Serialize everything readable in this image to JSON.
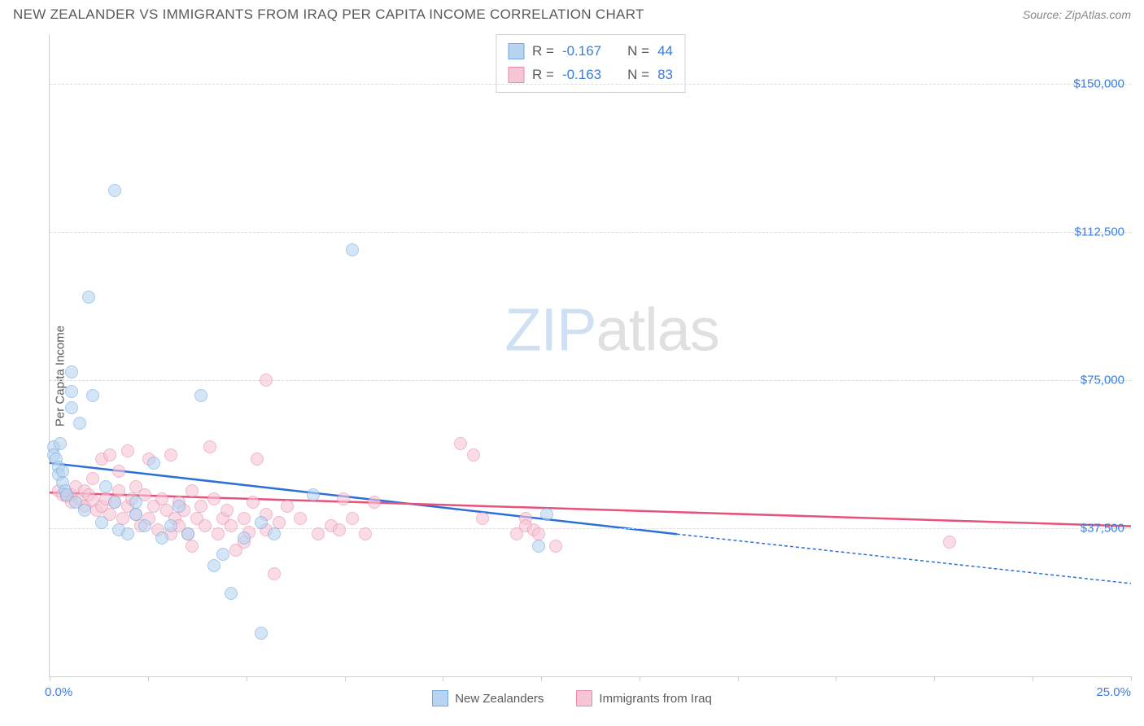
{
  "header": {
    "title": "NEW ZEALANDER VS IMMIGRANTS FROM IRAQ PER CAPITA INCOME CORRELATION CHART",
    "source": "Source: ZipAtlas.com"
  },
  "ylabel": "Per Capita Income",
  "watermark": {
    "part1": "ZIP",
    "part2": "atlas"
  },
  "chart": {
    "type": "scatter",
    "xlim": [
      0,
      25
    ],
    "ylim": [
      0,
      162500
    ],
    "background_color": "#ffffff",
    "grid_color": "#dcdcdc",
    "axis_color": "#cfcfcf",
    "ygrid": [
      {
        "y": 37500,
        "label": "$37,500"
      },
      {
        "y": 75000,
        "label": "$75,000"
      },
      {
        "y": 112500,
        "label": "$112,500"
      },
      {
        "y": 150000,
        "label": "$150,000"
      }
    ],
    "xticks": [
      0,
      2.27,
      4.55,
      6.82,
      9.09,
      11.36,
      13.64,
      15.91,
      18.18,
      20.45,
      22.73,
      25
    ],
    "xlabels": {
      "first": "0.0%",
      "last": "25.0%"
    },
    "marker_size": 16,
    "series": [
      {
        "name": "New Zealanders",
        "fill_color": "#b8d4f0",
        "stroke_color": "#6fa8e0",
        "fill_opacity": 0.6,
        "R": "-0.167",
        "N": "44",
        "trend": {
          "solid": {
            "x1": 0,
            "y1": 54000,
            "x2": 14.5,
            "y2": 36000
          },
          "dashed": {
            "x1": 14.5,
            "y1": 36000,
            "x2": 25,
            "y2": 23500
          },
          "color": "#2d6fd8",
          "width": 2.5
        },
        "points": [
          [
            0.1,
            58000
          ],
          [
            0.1,
            56000
          ],
          [
            0.15,
            55000
          ],
          [
            0.2,
            53000
          ],
          [
            0.2,
            51000
          ],
          [
            0.25,
            59000
          ],
          [
            0.3,
            49000
          ],
          [
            0.3,
            52000
          ],
          [
            0.35,
            47000
          ],
          [
            0.4,
            46000
          ],
          [
            0.5,
            77000
          ],
          [
            0.5,
            68000
          ],
          [
            0.5,
            72000
          ],
          [
            0.6,
            44000
          ],
          [
            0.7,
            64000
          ],
          [
            0.8,
            42000
          ],
          [
            0.9,
            96000
          ],
          [
            1.0,
            71000
          ],
          [
            1.2,
            39000
          ],
          [
            1.3,
            48000
          ],
          [
            1.5,
            44000
          ],
          [
            1.5,
            123000
          ],
          [
            1.6,
            37000
          ],
          [
            1.8,
            36000
          ],
          [
            2.0,
            44000
          ],
          [
            2.0,
            41000
          ],
          [
            2.2,
            38000
          ],
          [
            2.4,
            54000
          ],
          [
            2.6,
            35000
          ],
          [
            2.8,
            38000
          ],
          [
            3.0,
            43000
          ],
          [
            3.2,
            36000
          ],
          [
            3.5,
            71000
          ],
          [
            3.8,
            28000
          ],
          [
            4.0,
            30800
          ],
          [
            4.2,
            21000
          ],
          [
            4.5,
            35000
          ],
          [
            4.9,
            11000
          ],
          [
            4.9,
            39000
          ],
          [
            5.2,
            36000
          ],
          [
            6.1,
            46000
          ],
          [
            7.0,
            108000
          ],
          [
            11.3,
            33000
          ],
          [
            11.5,
            41000
          ]
        ]
      },
      {
        "name": "Immigrants from Iraq",
        "fill_color": "#f6c6d6",
        "stroke_color": "#e88aa8",
        "fill_opacity": 0.6,
        "R": "-0.163",
        "N": "83",
        "trend": {
          "solid": {
            "x1": 0,
            "y1": 46500,
            "x2": 25,
            "y2": 38000
          },
          "color": "#e8517a",
          "width": 2.5
        },
        "points": [
          [
            0.2,
            47000
          ],
          [
            0.3,
            46000
          ],
          [
            0.4,
            45500
          ],
          [
            0.5,
            46000
          ],
          [
            0.5,
            44000
          ],
          [
            0.6,
            48000
          ],
          [
            0.7,
            45000
          ],
          [
            0.8,
            43000
          ],
          [
            0.8,
            47000
          ],
          [
            0.9,
            46000
          ],
          [
            1.0,
            44500
          ],
          [
            1.0,
            50000
          ],
          [
            1.1,
            42000
          ],
          [
            1.2,
            55000
          ],
          [
            1.2,
            43000
          ],
          [
            1.3,
            45000
          ],
          [
            1.4,
            56000
          ],
          [
            1.4,
            41000
          ],
          [
            1.5,
            44000
          ],
          [
            1.6,
            47000
          ],
          [
            1.6,
            52000
          ],
          [
            1.7,
            40000
          ],
          [
            1.8,
            57000
          ],
          [
            1.8,
            43000
          ],
          [
            1.9,
            45000
          ],
          [
            2.0,
            48000
          ],
          [
            2.0,
            41000
          ],
          [
            2.1,
            38000
          ],
          [
            2.2,
            46000
          ],
          [
            2.3,
            55000
          ],
          [
            2.3,
            40000
          ],
          [
            2.4,
            43000
          ],
          [
            2.5,
            37000
          ],
          [
            2.6,
            45000
          ],
          [
            2.7,
            42000
          ],
          [
            2.8,
            36000
          ],
          [
            2.8,
            56000
          ],
          [
            2.9,
            40000
          ],
          [
            3.0,
            44000
          ],
          [
            3.0,
            38000
          ],
          [
            3.1,
            42000
          ],
          [
            3.2,
            36000
          ],
          [
            3.3,
            47000
          ],
          [
            3.4,
            40000
          ],
          [
            3.5,
            43000
          ],
          [
            3.6,
            38000
          ],
          [
            3.7,
            58000
          ],
          [
            3.8,
            45000
          ],
          [
            3.9,
            36000
          ],
          [
            4.0,
            40000
          ],
          [
            4.1,
            42000
          ],
          [
            4.2,
            38000
          ],
          [
            4.3,
            32000
          ],
          [
            4.5,
            40000
          ],
          [
            4.5,
            34000
          ],
          [
            4.7,
            44000
          ],
          [
            4.8,
            55000
          ],
          [
            5.0,
            37000
          ],
          [
            5.0,
            41000
          ],
          [
            5.0,
            75000
          ],
          [
            5.2,
            26000
          ],
          [
            5.3,
            39000
          ],
          [
            5.5,
            43000
          ],
          [
            5.8,
            40000
          ],
          [
            6.2,
            36000
          ],
          [
            6.5,
            38000
          ],
          [
            6.7,
            37000
          ],
          [
            6.8,
            45000
          ],
          [
            7.0,
            40000
          ],
          [
            7.3,
            36000
          ],
          [
            7.5,
            44000
          ],
          [
            9.5,
            59000
          ],
          [
            9.8,
            56000
          ],
          [
            10.0,
            40000
          ],
          [
            10.8,
            36000
          ],
          [
            11.0,
            40000
          ],
          [
            11.0,
            38000
          ],
          [
            11.2,
            37000
          ],
          [
            11.3,
            36000
          ],
          [
            11.7,
            33000
          ],
          [
            20.8,
            34000
          ],
          [
            3.3,
            33000
          ],
          [
            4.6,
            36500
          ]
        ]
      }
    ]
  },
  "legend": {
    "items": [
      {
        "label": "New Zealanders",
        "fill": "#b8d4f0",
        "stroke": "#6fa8e0"
      },
      {
        "label": "Immigrants from Iraq",
        "fill": "#f6c6d6",
        "stroke": "#e88aa8"
      }
    ]
  }
}
